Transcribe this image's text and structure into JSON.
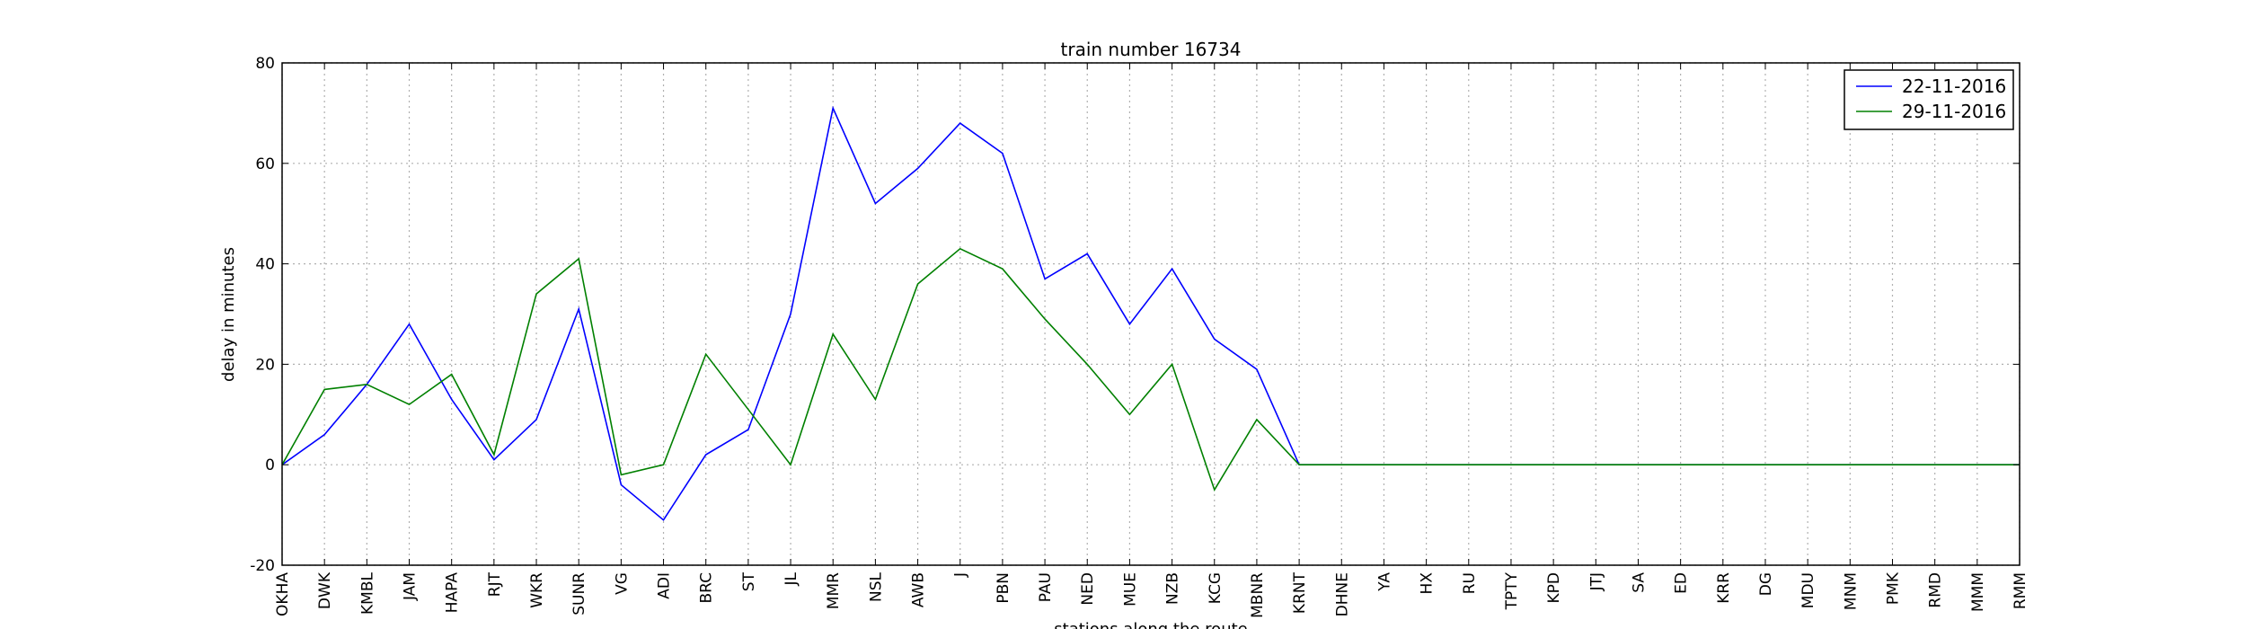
{
  "chart_data": {
    "type": "line",
    "title": "train number 16734",
    "xlabel": "stations along the route",
    "ylabel": "delay in minutes",
    "ylim": [
      -20,
      80
    ],
    "yticks": [
      -20,
      0,
      20,
      40,
      60,
      80
    ],
    "grid": true,
    "legend_position": "top-right",
    "categories": [
      "OKHA",
      "DWK",
      "KMBL",
      "JAM",
      "HAPA",
      "RJT",
      "WKR",
      "SUNR",
      "VG",
      "ADI",
      "BRC",
      "ST",
      "JL",
      "MMR",
      "NSL",
      "AWB",
      "J",
      "PBN",
      "PAU",
      "NED",
      "MUE",
      "NZB",
      "KCG",
      "MBNR",
      "KRNT",
      "DHNE",
      "YA",
      "HX",
      "RU",
      "TPTY",
      "KPD",
      "JTJ",
      "SA",
      "ED",
      "KRR",
      "DG",
      "MDU",
      "MNM",
      "PMK",
      "RMD",
      "MMM",
      "RMM"
    ],
    "series": [
      {
        "name": "22-11-2016",
        "color": "#0000ff",
        "values": [
          0,
          6,
          16,
          28,
          13,
          1,
          9,
          31,
          -4,
          -11,
          2,
          7,
          30,
          71,
          52,
          59,
          68,
          62,
          37,
          42,
          28,
          39,
          25,
          19,
          0,
          0,
          0,
          0,
          0,
          0,
          0,
          0,
          0,
          0,
          0,
          0,
          0,
          0,
          0,
          0,
          0,
          0
        ]
      },
      {
        "name": "29-11-2016",
        "color": "#008000",
        "values": [
          0,
          15,
          16,
          12,
          18,
          2,
          34,
          41,
          -2,
          0,
          22,
          11,
          0,
          26,
          13,
          36,
          43,
          39,
          29,
          20,
          10,
          20,
          -5,
          9,
          0,
          0,
          0,
          0,
          0,
          0,
          0,
          0,
          0,
          0,
          0,
          0,
          0,
          0,
          0,
          0,
          0,
          0
        ]
      }
    ]
  }
}
